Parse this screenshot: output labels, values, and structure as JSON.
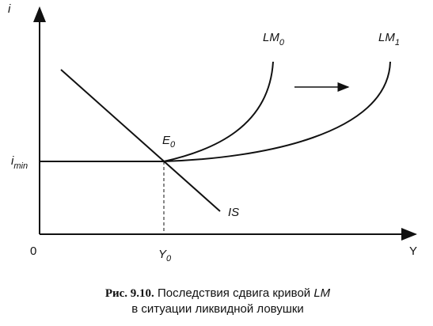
{
  "axes": {
    "y_label": "i",
    "x_label": "Y",
    "origin": "0"
  },
  "points": {
    "y0": {
      "main": "Y",
      "sub": "0"
    },
    "imin": {
      "main": "i",
      "sub": "min"
    },
    "e0": {
      "main": "E",
      "sub": "0"
    }
  },
  "curves": {
    "lm0": {
      "main": "LM",
      "sub": "0"
    },
    "lm1": {
      "main": "LM",
      "sub": "1"
    },
    "is": "IS"
  },
  "caption": {
    "number": "Рис. 9.10.",
    "text": "Последствия сдвига кривой ",
    "italic": "LM",
    "line2": "в ситуации ликвидной ловушки"
  }
}
